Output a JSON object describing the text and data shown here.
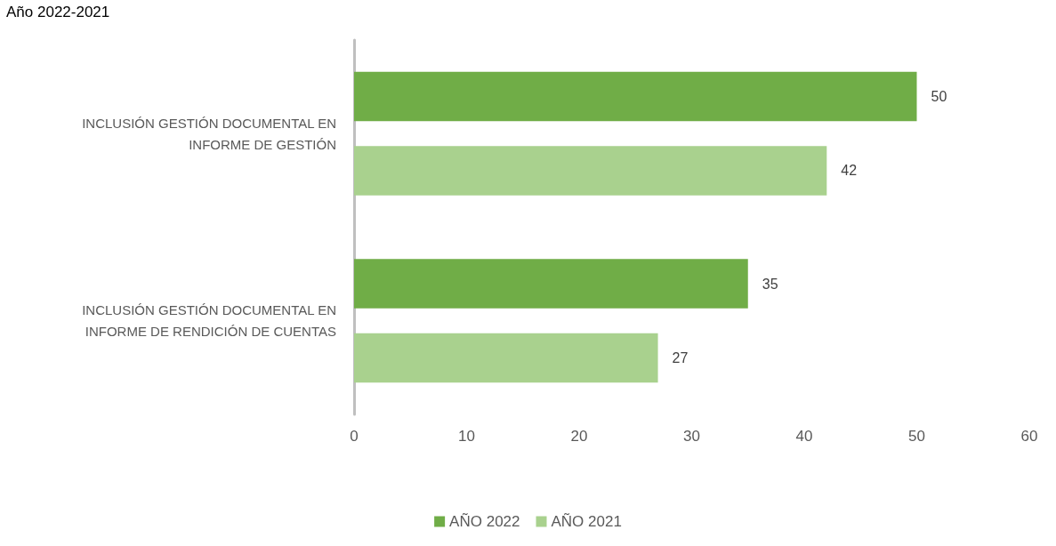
{
  "chart_data": {
    "type": "bar",
    "orientation": "horizontal",
    "title": "Año 2022-2021",
    "categories": [
      "INCLUSIÓN GESTIÓN DOCUMENTAL EN INFORME DE GESTIÓN",
      "INCLUSIÓN GESTIÓN DOCUMENTAL EN INFORME DE RENDICIÓN DE CUENTAS"
    ],
    "series": [
      {
        "name": "AÑO 2022",
        "color": "#70ad47",
        "values": [
          50,
          35
        ]
      },
      {
        "name": "AÑO 2021",
        "color": "#a9d18e",
        "values": [
          42,
          27
        ]
      }
    ],
    "xlim": [
      0,
      60
    ],
    "xticks": [
      0,
      10,
      20,
      30,
      40,
      50,
      60
    ],
    "grid": false,
    "legend": "bottom",
    "data_labels": true
  }
}
